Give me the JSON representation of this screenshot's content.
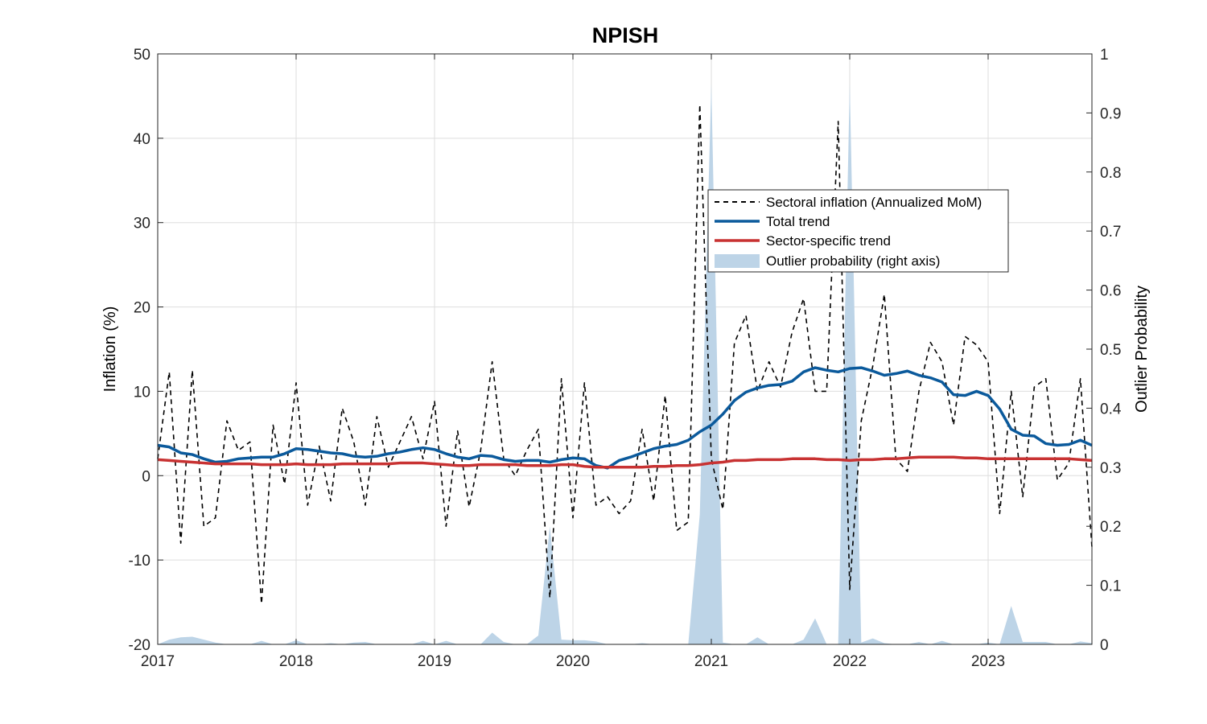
{
  "chart_data": {
    "type": "line",
    "title": "NPISH",
    "xlabel": "",
    "ylabel": "Inflation (%)",
    "ylabel_right": "Outlier Probability",
    "xlim": [
      2017.0,
      2023.75
    ],
    "ylim": [
      -20,
      50
    ],
    "ylim_right": [
      0,
      1
    ],
    "x_ticks": [
      "2017",
      "2018",
      "2019",
      "2020",
      "2021",
      "2022",
      "2023"
    ],
    "y_ticks": [
      "-20",
      "-10",
      "0",
      "10",
      "20",
      "30",
      "40",
      "50"
    ],
    "y_ticks_right": [
      "0",
      "0.1",
      "0.2",
      "0.3",
      "0.4",
      "0.5",
      "0.6",
      "0.7",
      "0.8",
      "0.9",
      "1"
    ],
    "grid": true,
    "legend_position": "upper-right-inside",
    "x_start": "2017-01",
    "series": [
      {
        "name": "Sectoral inflation (Annualized MoM)",
        "style": "dashed",
        "color": "#000000",
        "axis": "left",
        "values": [
          2.0,
          12.3,
          -8.0,
          12.5,
          -6.0,
          -5.0,
          6.5,
          3.0,
          4.0,
          -15.2,
          6.0,
          -1.0,
          11.0,
          -3.5,
          3.5,
          -3.0,
          8.0,
          4.0,
          -3.5,
          7.0,
          1.0,
          4.0,
          7.0,
          2.0,
          8.8,
          -6.0,
          5.3,
          -3.7,
          3.0,
          13.5,
          2.0,
          0.0,
          3.0,
          5.5,
          -14.5,
          11.5,
          -5.0,
          11.0,
          -3.5,
          -2.5,
          -4.5,
          -3.0,
          5.5,
          -3.0,
          9.5,
          -6.5,
          -5.5,
          44.0,
          2.0,
          -4.0,
          15.7,
          19.0,
          10.0,
          13.5,
          10.5,
          17.0,
          21.0,
          10.0,
          10.0,
          42.0,
          -13.5,
          6.5,
          13.0,
          21.5,
          2.0,
          0.5,
          10.0,
          15.8,
          13.5,
          6.0,
          16.5,
          15.5,
          13.5,
          -4.5,
          10.0,
          -2.5,
          10.5,
          11.5,
          -0.5,
          1.5,
          11.5,
          -8.5
        ]
      },
      {
        "name": "Total trend",
        "style": "solid",
        "color": "#0b5a9c",
        "axis": "left",
        "values": [
          3.6,
          3.4,
          2.7,
          2.5,
          2.0,
          1.6,
          1.7,
          2.0,
          2.1,
          2.2,
          2.2,
          2.6,
          3.2,
          3.1,
          2.9,
          2.7,
          2.6,
          2.3,
          2.2,
          2.3,
          2.6,
          2.8,
          3.1,
          3.3,
          3.1,
          2.6,
          2.2,
          2.0,
          2.4,
          2.3,
          1.9,
          1.7,
          1.8,
          1.8,
          1.6,
          1.9,
          2.1,
          2.0,
          1.2,
          0.9,
          1.8,
          2.2,
          2.7,
          3.2,
          3.5,
          3.7,
          4.2,
          5.2,
          6.0,
          7.3,
          8.9,
          9.9,
          10.4,
          10.7,
          10.8,
          11.2,
          12.3,
          12.8,
          12.5,
          12.3,
          12.7,
          12.8,
          12.4,
          11.9,
          12.1,
          12.4,
          11.9,
          11.6,
          11.1,
          9.6,
          9.5,
          10.0,
          9.5,
          7.9,
          5.5,
          4.8,
          4.7,
          3.8,
          3.6,
          3.7,
          4.2,
          3.6
        ]
      },
      {
        "name": "Sector-specific trend",
        "style": "solid",
        "color": "#c83232",
        "axis": "left",
        "values": [
          1.9,
          1.8,
          1.7,
          1.6,
          1.5,
          1.4,
          1.4,
          1.4,
          1.4,
          1.3,
          1.3,
          1.3,
          1.4,
          1.3,
          1.3,
          1.3,
          1.4,
          1.4,
          1.4,
          1.4,
          1.4,
          1.5,
          1.5,
          1.5,
          1.4,
          1.3,
          1.2,
          1.2,
          1.3,
          1.3,
          1.3,
          1.3,
          1.2,
          1.2,
          1.2,
          1.3,
          1.3,
          1.1,
          1.0,
          1.0,
          1.0,
          1.0,
          1.0,
          1.1,
          1.1,
          1.2,
          1.2,
          1.3,
          1.5,
          1.6,
          1.8,
          1.8,
          1.9,
          1.9,
          1.9,
          2.0,
          2.0,
          2.0,
          1.9,
          1.9,
          1.8,
          1.9,
          1.9,
          2.0,
          2.0,
          2.1,
          2.2,
          2.2,
          2.2,
          2.2,
          2.1,
          2.1,
          2.0,
          2.0,
          2.0,
          2.0,
          2.0,
          2.0,
          2.0,
          2.0,
          1.9,
          1.8
        ]
      },
      {
        "name": "Outlier probability (right axis)",
        "style": "area",
        "color": "#bdd4e7",
        "axis": "right",
        "values": [
          0.0,
          0.008,
          0.012,
          0.013,
          0.008,
          0.003,
          0.0,
          0.0,
          0.0,
          0.006,
          0.0,
          0.0,
          0.007,
          0.0,
          0.0,
          0.002,
          0.0,
          0.003,
          0.004,
          0.0,
          0.0,
          0.0,
          0.0,
          0.006,
          0.0,
          0.006,
          0.0,
          0.0,
          0.0,
          0.02,
          0.004,
          0.0,
          0.0,
          0.015,
          0.2,
          0.008,
          0.007,
          0.007,
          0.005,
          0.0,
          0.0,
          0.0,
          0.002,
          0.0,
          0.0,
          0.0,
          0.0,
          0.22,
          0.95,
          0.003,
          0.0,
          0.0,
          0.012,
          0.0,
          0.0,
          0.0,
          0.008,
          0.044,
          0.0,
          0.0,
          0.95,
          0.003,
          0.01,
          0.002,
          0.0,
          0.0,
          0.004,
          0.0,
          0.006,
          0.0,
          0.0,
          0.0,
          0.003,
          0.0,
          0.065,
          0.004,
          0.004,
          0.004,
          0.0,
          0.0,
          0.005,
          0.002
        ]
      }
    ]
  }
}
